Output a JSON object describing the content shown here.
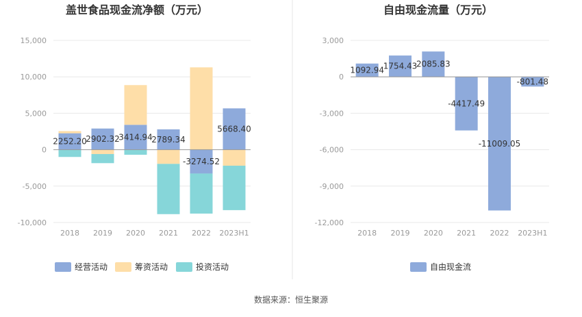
{
  "colors": {
    "operating": "#8eaadb",
    "financing": "#fedea8",
    "investing": "#86d6d9",
    "fcf": "#8eaadb",
    "grid": "#e8e8e8",
    "axis": "#999999",
    "tick_text": "#999999",
    "title": "#333333",
    "label_text": "#333333",
    "divider": "#e6e6e6"
  },
  "source_text": "数据来源：恒生聚源",
  "chart_data": [
    {
      "type": "bar",
      "stacked": true,
      "title": "盖世食品现金流净额（万元）",
      "categories": [
        "2018",
        "2019",
        "2020",
        "2021",
        "2022",
        "2023H1"
      ],
      "ylim": [
        -10000,
        15000
      ],
      "yticks": [
        15000,
        10000,
        5000,
        0,
        -5000,
        -10000
      ],
      "ytick_labels": [
        "15,000",
        "10,000",
        "5,000",
        "0",
        "-5,000",
        "-10,000"
      ],
      "series": [
        {
          "name": "经营活动",
          "key": "operating",
          "values": [
            2252.2,
            2902.32,
            3414.94,
            2789.34,
            -3274.52,
            5668.4
          ],
          "labels": [
            "2252.20",
            "2902.32",
            "3414.94",
            "2789.34",
            "-3274.52",
            "5668.40"
          ]
        },
        {
          "name": "筹资活动",
          "key": "financing",
          "values": [
            300,
            -600,
            5450,
            -1950,
            11300,
            -2200
          ]
        },
        {
          "name": "投资活动",
          "key": "investing",
          "values": [
            -1000,
            -1250,
            -700,
            -6900,
            -5500,
            -6100
          ]
        }
      ],
      "legend": [
        "经营活动",
        "筹资活动",
        "投资活动"
      ],
      "legend_position": "bottom"
    },
    {
      "type": "bar",
      "title": "自由现金流量（万元）",
      "categories": [
        "2018",
        "2019",
        "2020",
        "2021",
        "2022",
        "2023H1"
      ],
      "ylim": [
        -12000,
        3000
      ],
      "yticks": [
        3000,
        0,
        -3000,
        -6000,
        -9000,
        -12000
      ],
      "ytick_labels": [
        "3,000",
        "0",
        "-3,000",
        "-6,000",
        "-9,000",
        "-12,000"
      ],
      "series": [
        {
          "name": "自由现金流",
          "key": "fcf",
          "values": [
            1092.94,
            1754.43,
            2085.83,
            -4417.49,
            -11009.05,
            -801.48
          ],
          "labels": [
            "1092.94",
            "1754.43",
            "2085.83",
            "-4417.49",
            "-11009.05",
            "-801.48"
          ]
        }
      ],
      "legend": [
        "自由现金流"
      ],
      "legend_position": "bottom"
    }
  ]
}
